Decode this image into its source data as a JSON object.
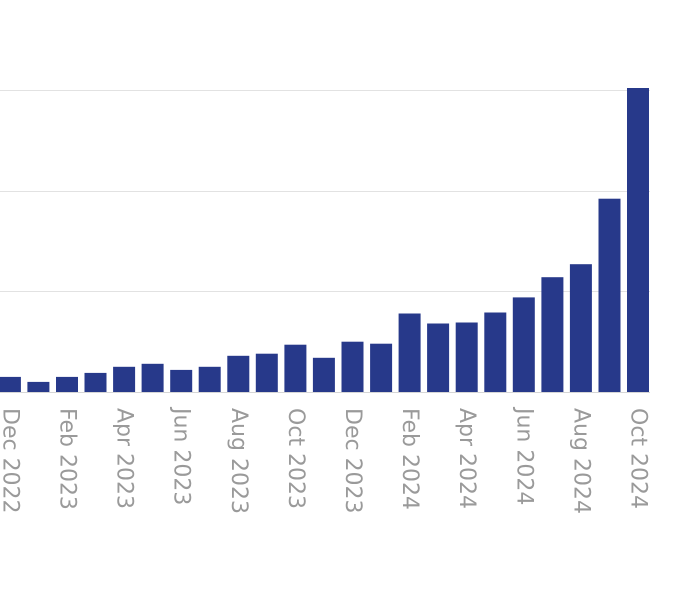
{
  "chart_data": {
    "type": "bar",
    "categories": [
      "Dec 2022",
      "Jan 2023",
      "Feb 2023",
      "Mar 2023",
      "Apr 2023",
      "May 2023",
      "Jun 2023",
      "Jul 2023",
      "Aug 2023",
      "Sep 2023",
      "Oct 2023",
      "Nov 2023",
      "Dec 2023",
      "Jan 2024",
      "Feb 2024",
      "Mar 2024",
      "Apr 2024",
      "May 2024",
      "Jun 2024",
      "Jul 2024",
      "Aug 2024",
      "Sep 2024",
      "Oct 2024"
    ],
    "tick_labels": [
      "Dec 2022",
      "",
      "Feb 2023",
      "",
      "Apr 2023",
      "",
      "Jun 2023",
      "",
      "Aug 2023",
      "",
      "Oct 2023",
      "",
      "Dec 2023",
      "",
      "Feb 2024",
      "",
      "Apr 2024",
      "",
      "Jun 2024",
      "",
      "Aug 2024",
      "",
      "Oct 2024"
    ],
    "values": [
      0.15,
      0.1,
      0.15,
      0.19,
      0.25,
      0.28,
      0.22,
      0.25,
      0.36,
      0.38,
      0.47,
      0.34,
      0.5,
      0.48,
      0.78,
      0.68,
      0.69,
      0.79,
      0.94,
      1.14,
      1.27,
      1.92,
      3.02
    ],
    "ylim": [
      0,
      3
    ],
    "y_gridlines": [
      1,
      2,
      3
    ],
    "grid": true,
    "legend": "none",
    "colors": {
      "bar": "#27398a",
      "grid": "#e2e2e2",
      "tick_text": "#9a9a9a"
    }
  }
}
